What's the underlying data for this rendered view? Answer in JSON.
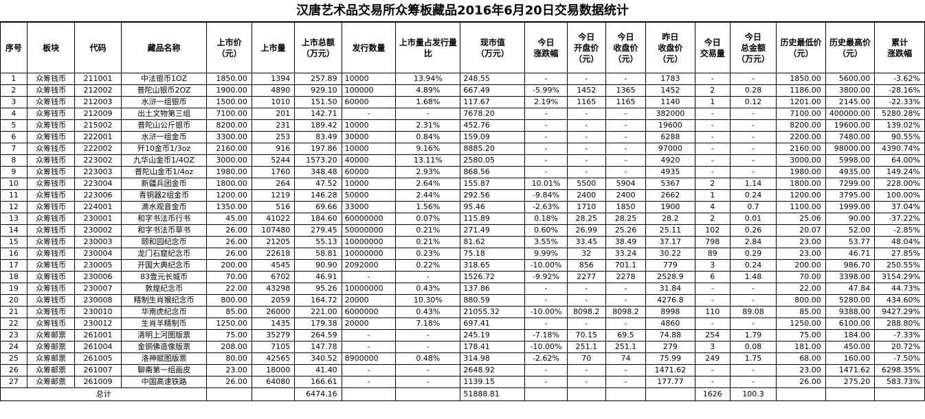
{
  "title": "汉唐艺术品交易所众筹板藏品2016年6月20日交易数据统计",
  "headers": [
    [
      "序号"
    ],
    [
      "板块"
    ],
    [
      "代码"
    ],
    [
      "藏品名称"
    ],
    [
      "上市价",
      "（元）"
    ],
    [
      "上市量"
    ],
    [
      "上市总额",
      "（万元）"
    ],
    [
      "发行数量"
    ],
    [
      "上市量占发行量",
      "比"
    ],
    [
      "现市值",
      "（万元）"
    ],
    [
      "今日",
      "涨跌幅"
    ],
    [
      "今日",
      "开盘价",
      "（元）"
    ],
    [
      "今日",
      "收盘价",
      "（元）"
    ],
    [
      "昨日",
      "收盘价",
      "（元）"
    ],
    [
      "今日",
      "交易量"
    ],
    [
      "今日",
      "总金额",
      "（万元）"
    ],
    [
      "历史最低价",
      "（元）"
    ],
    [
      "历史最高价",
      "（元）"
    ],
    [
      "累计",
      "涨跌幅"
    ]
  ],
  "rows": [
    [
      "1",
      "众筹钱币",
      "211001",
      "中法银币1OZ",
      "1850.00",
      "1394",
      "257.89",
      "10000",
      "13.94%",
      "248.55",
      "-",
      "-",
      "-",
      "1783",
      "-",
      "-",
      "1850.00",
      "5600.00",
      "-3.62%"
    ],
    [
      "2",
      "众筹钱币",
      "212002",
      "普陀山银币2OZ",
      "1900.00",
      "4890",
      "929.10",
      "100000",
      "4.89%",
      "667.49",
      "-5.99%",
      "1452",
      "1365",
      "1452",
      "2",
      "0.28",
      "1186.00",
      "3800.00",
      "-28.16%"
    ],
    [
      "3",
      "众筹钱币",
      "212003",
      "水浒一组银币",
      "1500.00",
      "1010",
      "151.50",
      "60000",
      "1.68%",
      "117.67",
      "2.19%",
      "1165",
      "1165",
      "1140",
      "1",
      "0.12",
      "1201.00",
      "2145.00",
      "-22.33%"
    ],
    [
      "4",
      "众筹钱币",
      "212009",
      "出土文物第三组",
      "7100.00",
      "201",
      "142.71",
      "-",
      "-",
      "7678.20",
      "-",
      "-",
      "-",
      "382000",
      "-",
      "-",
      "7100.00",
      "400000.00",
      "5280.28%"
    ],
    [
      "5",
      "众筹钱币",
      "215002",
      "普陀山公斤银币",
      "8200.00",
      "231",
      "189.42",
      "10000",
      "2.31%",
      "452.76",
      "-",
      "-",
      "-",
      "19600",
      "-",
      "-",
      "8200.00",
      "19600.00",
      "139.02%"
    ],
    [
      "6",
      "众筹钱币",
      "222001",
      "水浒一组金币",
      "3300.00",
      "253",
      "83.49",
      "30000",
      "0.84%",
      "159.09",
      "-",
      "-",
      "-",
      "6288",
      "-",
      "-",
      "2200.00",
      "7480.00",
      "90.55%"
    ],
    [
      "7",
      "众筹钱币",
      "222002",
      "歼10金币1/3oz",
      "2160.00",
      "916",
      "197.86",
      "10000",
      "9.16%",
      "8885.20",
      "-",
      "-",
      "-",
      "97000",
      "-",
      "-",
      "2160.00",
      "98000.00",
      "4390.74%"
    ],
    [
      "8",
      "众筹钱币",
      "223002",
      "九华山金币1/4OZ",
      "3000.00",
      "5244",
      "1573.20",
      "40000",
      "13.11%",
      "2580.05",
      "-",
      "-",
      "-",
      "4920",
      "-",
      "-",
      "3000.00",
      "5998.00",
      "64.00%"
    ],
    [
      "9",
      "众筹钱币",
      "223003",
      "普陀山金币1/4oz",
      "1980.00",
      "1760",
      "348.48",
      "60000",
      "2.93%",
      "868.56",
      "-",
      "-",
      "-",
      "4935",
      "-",
      "-",
      "1980.00",
      "4935.00",
      "149.24%"
    ],
    [
      "10",
      "众筹钱币",
      "223004",
      "新疆兵团金币",
      "1800.00",
      "264",
      "47.52",
      "10000",
      "2.64%",
      "155.87",
      "10.01%",
      "5500",
      "5904",
      "5367",
      "2",
      "1.14",
      "1800.00",
      "7299.00",
      "228.00%"
    ],
    [
      "11",
      "众筹钱币",
      "223006",
      "青铜器2组金币",
      "1200.00",
      "1219",
      "146.28",
      "50000",
      "2.44%",
      "292.56",
      "-9.84%",
      "2400",
      "2400",
      "2662",
      "1",
      "0.24",
      "1200.00",
      "3795.00",
      "100.00%"
    ],
    [
      "12",
      "众筹钱币",
      "224001",
      "滴水观音金币",
      "1350.00",
      "516",
      "69.66",
      "33000",
      "1.56%",
      "95.46",
      "-2.63%",
      "1710",
      "1850",
      "1900",
      "4",
      "0.7",
      "1100.00",
      "1999.00",
      "37.04%"
    ],
    [
      "13",
      "众筹钱币",
      "230001",
      "和字书法币行书",
      "45.00",
      "41022",
      "184.60",
      "60000000",
      "0.07%",
      "115.89",
      "0.18%",
      "28.25",
      "28.25",
      "28.2",
      "2",
      "0.01",
      "25.06",
      "90.00",
      "-37.22%"
    ],
    [
      "14",
      "众筹钱币",
      "230002",
      "和字书法币草书",
      "26.00",
      "107480",
      "279.45",
      "50000000",
      "0.21%",
      "271.49",
      "0.60%",
      "26.99",
      "25.26",
      "25.11",
      "102",
      "0.26",
      "20.07",
      "52.00",
      "-2.85%"
    ],
    [
      "15",
      "众筹钱币",
      "230003",
      "颐和园纪念币",
      "26.00",
      "21205",
      "55.13",
      "10000000",
      "0.21%",
      "81.62",
      "3.55%",
      "33.45",
      "38.49",
      "37.17",
      "798",
      "2.84",
      "23.00",
      "53.77",
      "48.04%"
    ],
    [
      "16",
      "众筹钱币",
      "230004",
      "龙门石窟纪念币",
      "26.00",
      "22618",
      "58.81",
      "10000000",
      "0.23%",
      "75.18",
      "9.99%",
      "32",
      "33.24",
      "30.22",
      "89",
      "0.29",
      "23.00",
      "46.71",
      "27.85%"
    ],
    [
      "17",
      "众筹钱币",
      "230005",
      "开国大典纪念币",
      "200.00",
      "4545",
      "90.90",
      "2092000",
      "0.22%",
      "318.65",
      "-10.00%",
      "856",
      "701.1",
      "779",
      "3",
      "0.24",
      "200.00",
      "986.70",
      "250.55%"
    ],
    [
      "18",
      "众筹钱币",
      "230006",
      "83壹元长城币",
      "70.00",
      "6702",
      "46.91",
      "-",
      "-",
      "1526.72",
      "-9.92%",
      "2277",
      "2278",
      "2528.9",
      "6",
      "1.48",
      "70.00",
      "3398.00",
      "3154.29%"
    ],
    [
      "19",
      "众筹钱币",
      "230007",
      "敦煌纪念币",
      "22.00",
      "43298",
      "95.26",
      "10000000",
      "0.43%",
      "137.86",
      "-",
      "-",
      "-",
      "31.84",
      "-",
      "-",
      "22.00",
      "47.84",
      "44.73%"
    ],
    [
      "20",
      "众筹钱币",
      "230008",
      "精制生肖猴纪念币",
      "800.00",
      "2059",
      "164.72",
      "20000",
      "10.30%",
      "880.59",
      "-",
      "-",
      "-",
      "4276.8",
      "-",
      "-",
      "800.00",
      "5280.00",
      "434.60%"
    ],
    [
      "21",
      "众筹钱币",
      "230010",
      "华南虎纪念币",
      "85.00",
      "26000",
      "221.00",
      "6000000",
      "0.43%",
      "21055.32",
      "-10.00%",
      "8098.2",
      "8098.2",
      "8998",
      "110",
      "89.08",
      "85.00",
      "9388.00",
      "9427.29%"
    ],
    [
      "22",
      "众筹钱币",
      "230012",
      "生肖羊精制币",
      "1250.00",
      "1435",
      "179.38",
      "20000",
      "7.18%",
      "697.41",
      "-",
      "-",
      "-",
      "4860",
      "-",
      "-",
      "1250.00",
      "6100.00",
      "288.80%"
    ],
    [
      "23",
      "众筹邮票",
      "261001",
      "清明上河图版票",
      "75.00",
      "35279",
      "264.59",
      "-",
      "-",
      "245.19",
      "-7.18%",
      "70.15",
      "69.5",
      "74.88",
      "254",
      "1.79",
      "75.00",
      "184.00",
      "-7.33%"
    ],
    [
      "24",
      "众筹邮票",
      "261004",
      "金铜佛造像版票",
      "208.00",
      "7105",
      "147.78",
      "-",
      "-",
      "178.41",
      "-10.00%",
      "251.1",
      "251.1",
      "279",
      "3",
      "0.08",
      "181.00",
      "450.00",
      "20.72%"
    ],
    [
      "25",
      "众筹邮票",
      "261005",
      "洛神赋图版票",
      "80.00",
      "42565",
      "340.52",
      "8900000",
      "0.48%",
      "314.98",
      "-2.62%",
      "70",
      "74",
      "75.99",
      "249",
      "1.75",
      "68.00",
      "160.00",
      "-7.50%"
    ],
    [
      "26",
      "众筹邮票",
      "261007",
      "聊斋第一组画皮",
      "23.00",
      "18000",
      "41.40",
      "-",
      "-",
      "2648.92",
      "-",
      "-",
      "-",
      "1471.62",
      "-",
      "-",
      "23.00",
      "1471.62",
      "6298.35%"
    ],
    [
      "27",
      "众筹邮票",
      "261009",
      "中国高速铁路",
      "26.00",
      "64080",
      "166.61",
      "-",
      "-",
      "1139.15",
      "-",
      "-",
      "-",
      "177.77",
      "-",
      "-",
      "26.00",
      "275.20",
      "583.73%"
    ]
  ],
  "total": {
    "label": "总计",
    "listing_total": "6474.16",
    "market_value": "51888.81",
    "volume": "1626",
    "amount": "100.3"
  }
}
